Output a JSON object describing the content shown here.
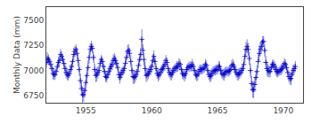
{
  "chart_data": {
    "type": "line",
    "ylabel": "Monthly Data (mm)",
    "color": "#0000cd",
    "marker": "plus",
    "grid": false,
    "xlim": [
      1952.0,
      1971.5
    ],
    "xticks": [
      1955,
      1960,
      1965,
      1970
    ],
    "ylim": [
      6680,
      7630
    ],
    "yticks": [
      6750,
      7000,
      7250,
      7500
    ],
    "x": [
      1952.0,
      1952.0833333333333,
      1952.1666666666667,
      1952.25,
      1952.3333333333333,
      1952.4166666666667,
      1952.5,
      1952.5833333333333,
      1952.6666666666667,
      1952.75,
      1952.8333333333333,
      1952.9166666666667,
      1953.0,
      1953.0833333333333,
      1953.1666666666667,
      1953.25,
      1953.3333333333333,
      1953.4166666666667,
      1953.5,
      1953.5833333333333,
      1953.6666666666667,
      1953.75,
      1953.8333333333333,
      1953.9166666666667,
      1954.0,
      1954.0833333333333,
      1954.1666666666667,
      1954.25,
      1954.3333333333333,
      1954.4166666666667,
      1954.5,
      1954.5833333333333,
      1954.6666666666667,
      1954.75,
      1954.8333333333333,
      1954.9166666666667,
      1955.0,
      1955.0833333333333,
      1955.1666666666667,
      1955.25,
      1955.3333333333333,
      1955.4166666666667,
      1955.5,
      1955.5833333333333,
      1955.6666666666667,
      1955.75,
      1955.8333333333333,
      1955.9166666666667,
      1956.0,
      1956.0833333333333,
      1956.1666666666667,
      1956.25,
      1956.3333333333333,
      1956.4166666666667,
      1956.5,
      1956.5833333333333,
      1956.6666666666667,
      1956.75,
      1956.8333333333333,
      1956.9166666666667,
      1957.0,
      1957.0833333333333,
      1957.1666666666667,
      1957.25,
      1957.3333333333333,
      1957.4166666666667,
      1957.5,
      1957.5833333333333,
      1957.6666666666667,
      1957.75,
      1957.8333333333333,
      1957.9166666666667,
      1958.0,
      1958.0833333333333,
      1958.1666666666667,
      1958.25,
      1958.3333333333333,
      1958.4166666666667,
      1958.5,
      1958.5833333333333,
      1958.6666666666667,
      1958.75,
      1958.8333333333333,
      1958.9166666666667,
      1959.0,
      1959.0833333333333,
      1959.1666666666667,
      1959.25,
      1959.3333333333333,
      1959.4166666666667,
      1959.5,
      1959.5833333333333,
      1959.6666666666667,
      1959.75,
      1959.8333333333333,
      1959.9166666666667,
      1960.0,
      1960.0833333333333,
      1960.1666666666667,
      1960.25,
      1960.3333333333333,
      1960.4166666666667,
      1960.5,
      1960.5833333333333,
      1960.6666666666667,
      1960.75,
      1960.8333333333333,
      1960.9166666666667,
      1961.0,
      1961.0833333333333,
      1961.1666666666667,
      1961.25,
      1961.3333333333333,
      1961.4166666666667,
      1961.5,
      1961.5833333333333,
      1961.6666666666667,
      1961.75,
      1961.8333333333333,
      1961.9166666666667,
      1962.0,
      1962.0833333333333,
      1962.1666666666667,
      1962.25,
      1962.3333333333333,
      1962.4166666666667,
      1962.5,
      1962.5833333333333,
      1962.6666666666667,
      1962.75,
      1962.8333333333333,
      1962.9166666666667,
      1963.0,
      1963.0833333333333,
      1963.1666666666667,
      1963.25,
      1963.3333333333333,
      1963.4166666666667,
      1963.5,
      1963.5833333333333,
      1963.6666666666667,
      1963.75,
      1963.8333333333333,
      1963.9166666666667,
      1964.0,
      1964.0833333333333,
      1964.1666666666667,
      1964.25,
      1964.3333333333333,
      1964.4166666666667,
      1964.5,
      1964.5833333333333,
      1964.6666666666667,
      1964.75,
      1964.8333333333333,
      1964.9166666666667,
      1965.0,
      1965.0833333333333,
      1965.1666666666667,
      1965.25,
      1965.3333333333333,
      1965.4166666666667,
      1965.5,
      1965.5833333333333,
      1965.6666666666667,
      1965.75,
      1965.8333333333333,
      1965.9166666666667,
      1966.0,
      1966.0833333333333,
      1966.1666666666667,
      1966.25,
      1966.3333333333333,
      1966.4166666666667,
      1966.5,
      1966.5833333333333,
      1966.6666666666667,
      1966.75,
      1966.8333333333333,
      1966.9166666666667,
      1967.0,
      1967.0833333333333,
      1967.1666666666667,
      1967.25,
      1967.3333333333333,
      1967.4166666666667,
      1967.5,
      1967.5833333333333,
      1967.6666666666667,
      1967.75,
      1967.8333333333333,
      1967.9166666666667,
      1968.0,
      1968.0833333333333,
      1968.1666666666667,
      1968.25,
      1968.3333333333333,
      1968.4166666666667,
      1968.5,
      1968.5833333333333,
      1968.6666666666667,
      1968.75,
      1968.8333333333333,
      1968.9166666666667,
      1969.0,
      1969.0833333333333,
      1969.1666666666667,
      1969.25,
      1969.3333333333333,
      1969.4166666666667,
      1969.5,
      1969.5833333333333,
      1969.6666666666667,
      1969.75,
      1969.8333333333333,
      1969.9166666666667,
      1970.0,
      1970.0833333333333,
      1970.1666666666667,
      1970.25,
      1970.3333333333333,
      1970.4166666666667,
      1970.5,
      1970.5833333333333,
      1970.6666666666667,
      1970.75,
      1970.8333333333333,
      1970.9166666666667
    ],
    "values": [
      7080,
      7120,
      7110,
      7090,
      7060,
      7020,
      6970,
      6960,
      6960,
      6990,
      7040,
      7080,
      7100,
      7160,
      7140,
      7110,
      7070,
      7020,
      6980,
      6960,
      6950,
      6970,
      7010,
      7040,
      7090,
      7160,
      7190,
      7210,
      7170,
      7100,
      7010,
      6900,
      6820,
      6760,
      6760,
      6800,
      6880,
      6950,
      7030,
      7130,
      7210,
      7240,
      7220,
      7130,
      7010,
      6950,
      6960,
      6980,
      7000,
      7070,
      7110,
      7090,
      7040,
      6990,
      6940,
      6930,
      6960,
      6990,
      7020,
      7040,
      7060,
      7100,
      7120,
      7100,
      7070,
      7030,
      6960,
      6930,
      6960,
      6980,
      7000,
      7020,
      7070,
      7130,
      7190,
      7200,
      7170,
      7090,
      7000,
      6940,
      6930,
      6940,
      6960,
      6990,
      7050,
      7110,
      7160,
      7310,
      7200,
      7110,
      7020,
      6950,
      6960,
      6970,
      6990,
      7010,
      7040,
      7100,
      7140,
      7090,
      7020,
      6970,
      6950,
      6960,
      6980,
      7010,
      7020,
      7040,
      7060,
      7100,
      7080,
      7020,
      6980,
      6960,
      6960,
      6980,
      7000,
      7020,
      7030,
      7040,
      7040,
      7070,
      7060,
      7010,
      6970,
      6960,
      6950,
      6970,
      7010,
      7030,
      7040,
      7040,
      7040,
      7060,
      7040,
      7000,
      6960,
      6950,
      6960,
      6990,
      7010,
      7010,
      7010,
      7020,
      7030,
      7060,
      7050,
      7000,
      6960,
      6940,
      6950,
      6970,
      6990,
      7000,
      7000,
      7010,
      7010,
      7040,
      7040,
      7000,
      6970,
      6960,
      6960,
      6980,
      6990,
      6990,
      6990,
      7000,
      7010,
      7050,
      7060,
      7040,
      7010,
      6980,
      6960,
      6960,
      6970,
      6980,
      7000,
      7020,
      7060,
      7140,
      7210,
      7240,
      7210,
      7120,
      7000,
      6870,
      6810,
      6810,
      6860,
      6930,
      6990,
      7090,
      7170,
      7210,
      7240,
      7280,
      7290,
      7200,
      7080,
      7020,
      7000,
      6990,
      6990,
      7030,
      7060,
      7060,
      7040,
      7010,
      6990,
      6980,
      6990,
      7000,
      7010,
      7020,
      7040,
      7070,
      7060,
      7030,
      6980,
      6940,
      6920,
      6920,
      6960,
      7000,
      7020,
      7040
    ],
    "errs": [
      55,
      60,
      50,
      45,
      40,
      50,
      60,
      55,
      50,
      45,
      50,
      55,
      60,
      55,
      50,
      45,
      50,
      55,
      60,
      55,
      50,
      45,
      50,
      55,
      60,
      65,
      55,
      50,
      55,
      60,
      65,
      70,
      75,
      80,
      70,
      65,
      80,
      75,
      70,
      65,
      60,
      55,
      50,
      55,
      60,
      65,
      70,
      60,
      55,
      50,
      45,
      50,
      55,
      60,
      55,
      50,
      45,
      50,
      55,
      50,
      55,
      60,
      55,
      50,
      45,
      50,
      55,
      60,
      55,
      50,
      45,
      50,
      55,
      60,
      65,
      60,
      55,
      60,
      65,
      70,
      65,
      60,
      55,
      50,
      55,
      60,
      65,
      100,
      60,
      65,
      70,
      65,
      60,
      55,
      50,
      55,
      60,
      65,
      60,
      55,
      50,
      55,
      60,
      55,
      50,
      45,
      50,
      55,
      60,
      55,
      50,
      45,
      50,
      55,
      60,
      55,
      50,
      45,
      50,
      55,
      50,
      55,
      50,
      45,
      50,
      55,
      60,
      55,
      50,
      45,
      50,
      50,
      50,
      55,
      50,
      45,
      50,
      55,
      60,
      55,
      50,
      45,
      50,
      50,
      50,
      55,
      50,
      45,
      50,
      55,
      60,
      55,
      50,
      45,
      50,
      50,
      50,
      55,
      50,
      45,
      50,
      55,
      60,
      55,
      50,
      45,
      50,
      50,
      50,
      55,
      55,
      50,
      45,
      50,
      55,
      60,
      55,
      50,
      50,
      50,
      60,
      70,
      75,
      70,
      65,
      65,
      70,
      75,
      80,
      85,
      75,
      70,
      65,
      70,
      75,
      70,
      65,
      60,
      55,
      60,
      65,
      70,
      65,
      60,
      55,
      50,
      45,
      50,
      55,
      60,
      55,
      50,
      45,
      50,
      55,
      50,
      50,
      55,
      50,
      45,
      50,
      55,
      60,
      65,
      60,
      55,
      50,
      55
    ]
  }
}
